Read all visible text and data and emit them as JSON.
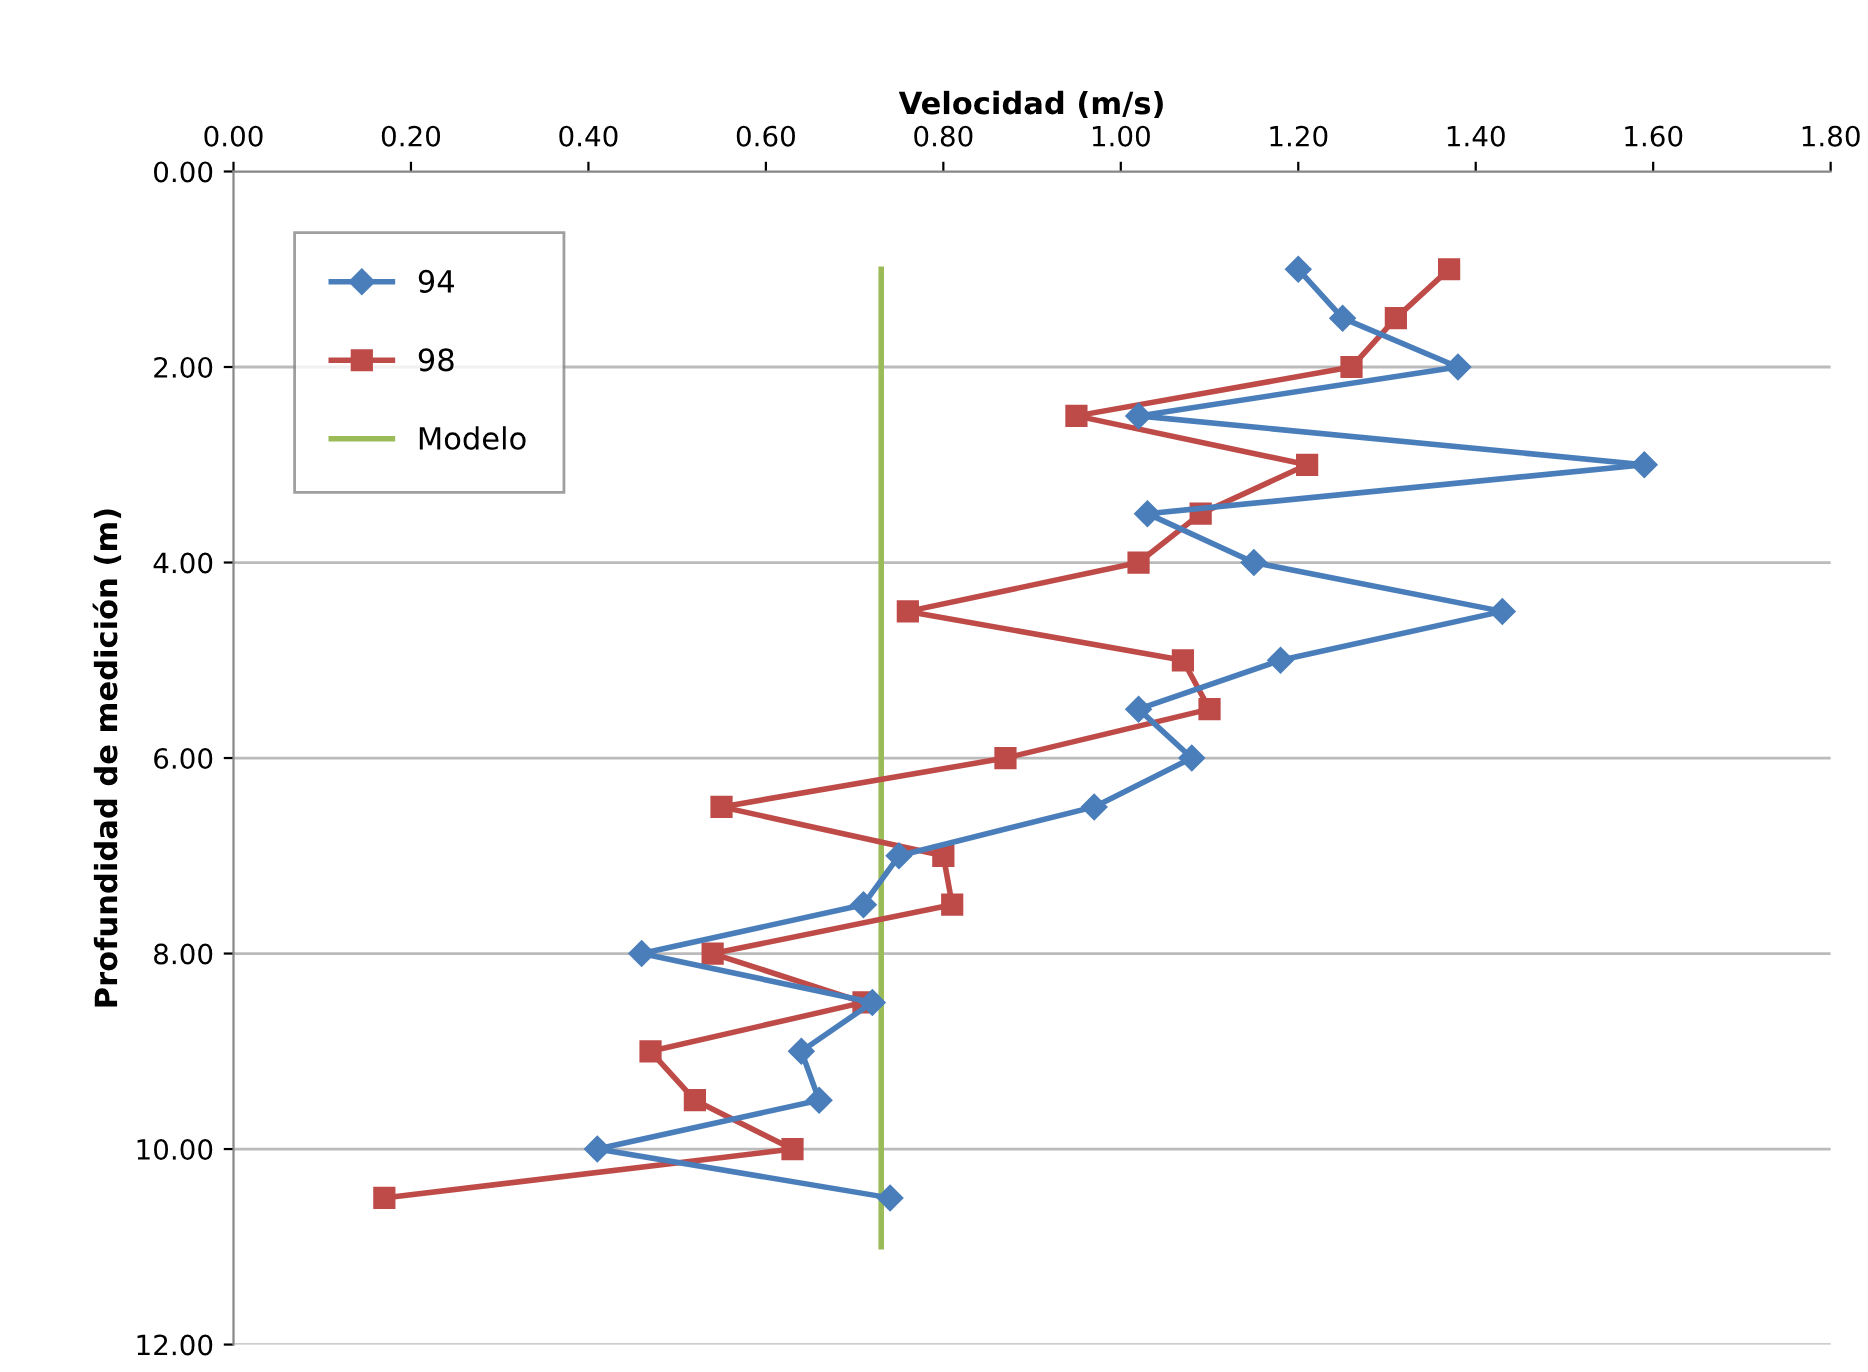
{
  "chart_data": {
    "type": "line",
    "xlabel": "Velocidad (m/s)",
    "ylabel": "Profundidad de medición (m)",
    "xlim": [
      0,
      1.8
    ],
    "xticks": [
      {
        "value": 0,
        "label": "0.00"
      },
      {
        "value": 0.2,
        "label": "0.20"
      },
      {
        "value": 0.4,
        "label": "0.40"
      },
      {
        "value": 0.6,
        "label": "0.60"
      },
      {
        "value": 0.8,
        "label": "0.80"
      },
      {
        "value": 1.0,
        "label": "1.00"
      },
      {
        "value": 1.2,
        "label": "1.20"
      },
      {
        "value": 1.4,
        "label": "1.40"
      },
      {
        "value": 1.6,
        "label": "1.60"
      },
      {
        "value": 1.8,
        "label": "1.80"
      }
    ],
    "ylim": [
      12,
      0
    ],
    "yticks": [
      {
        "value": 0,
        "label": "0.00"
      },
      {
        "value": 2,
        "label": "2.00"
      },
      {
        "value": 4,
        "label": "4.00"
      },
      {
        "value": 6,
        "label": "6.00"
      },
      {
        "value": 8,
        "label": "8.00"
      },
      {
        "value": 10,
        "label": "10.00"
      },
      {
        "value": 12,
        "label": "12.00"
      }
    ],
    "grid": "y",
    "legend": "top left",
    "line_style": "solid",
    "series": [
      {
        "name": "94",
        "color": "#4a7ebb",
        "marker": "diamond",
        "x": [
          1.2,
          1.25,
          1.38,
          1.02,
          1.59,
          1.03,
          1.15,
          1.43,
          1.18,
          1.02,
          1.08,
          0.97,
          0.75,
          0.71,
          0.46,
          0.72,
          0.64,
          0.66,
          0.41,
          0.74
        ],
        "values": [
          1.0,
          1.5,
          2.0,
          2.5,
          3.0,
          3.5,
          4.0,
          4.5,
          5.0,
          5.5,
          6.0,
          6.5,
          7.0,
          7.5,
          8.0,
          8.5,
          9.0,
          9.5,
          10.0,
          10.5
        ]
      },
      {
        "name": "98",
        "color": "#be4b48",
        "marker": "square",
        "x": [
          1.37,
          1.31,
          1.26,
          0.95,
          1.21,
          1.09,
          1.02,
          0.76,
          1.07,
          1.1,
          0.87,
          0.55,
          0.8,
          0.81,
          0.54,
          0.71,
          0.47,
          0.52,
          0.63,
          0.17
        ],
        "values": [
          1.0,
          1.5,
          2.0,
          2.5,
          3.0,
          3.5,
          4.0,
          4.5,
          5.0,
          5.5,
          6.0,
          6.5,
          7.0,
          7.5,
          8.0,
          8.5,
          9.0,
          9.5,
          10.0,
          10.5
        ]
      },
      {
        "name": "Modelo",
        "color": "#9bbb59",
        "marker": "none",
        "x": [
          0.73,
          0.73
        ],
        "values": [
          1.0,
          11.0
        ]
      }
    ]
  }
}
